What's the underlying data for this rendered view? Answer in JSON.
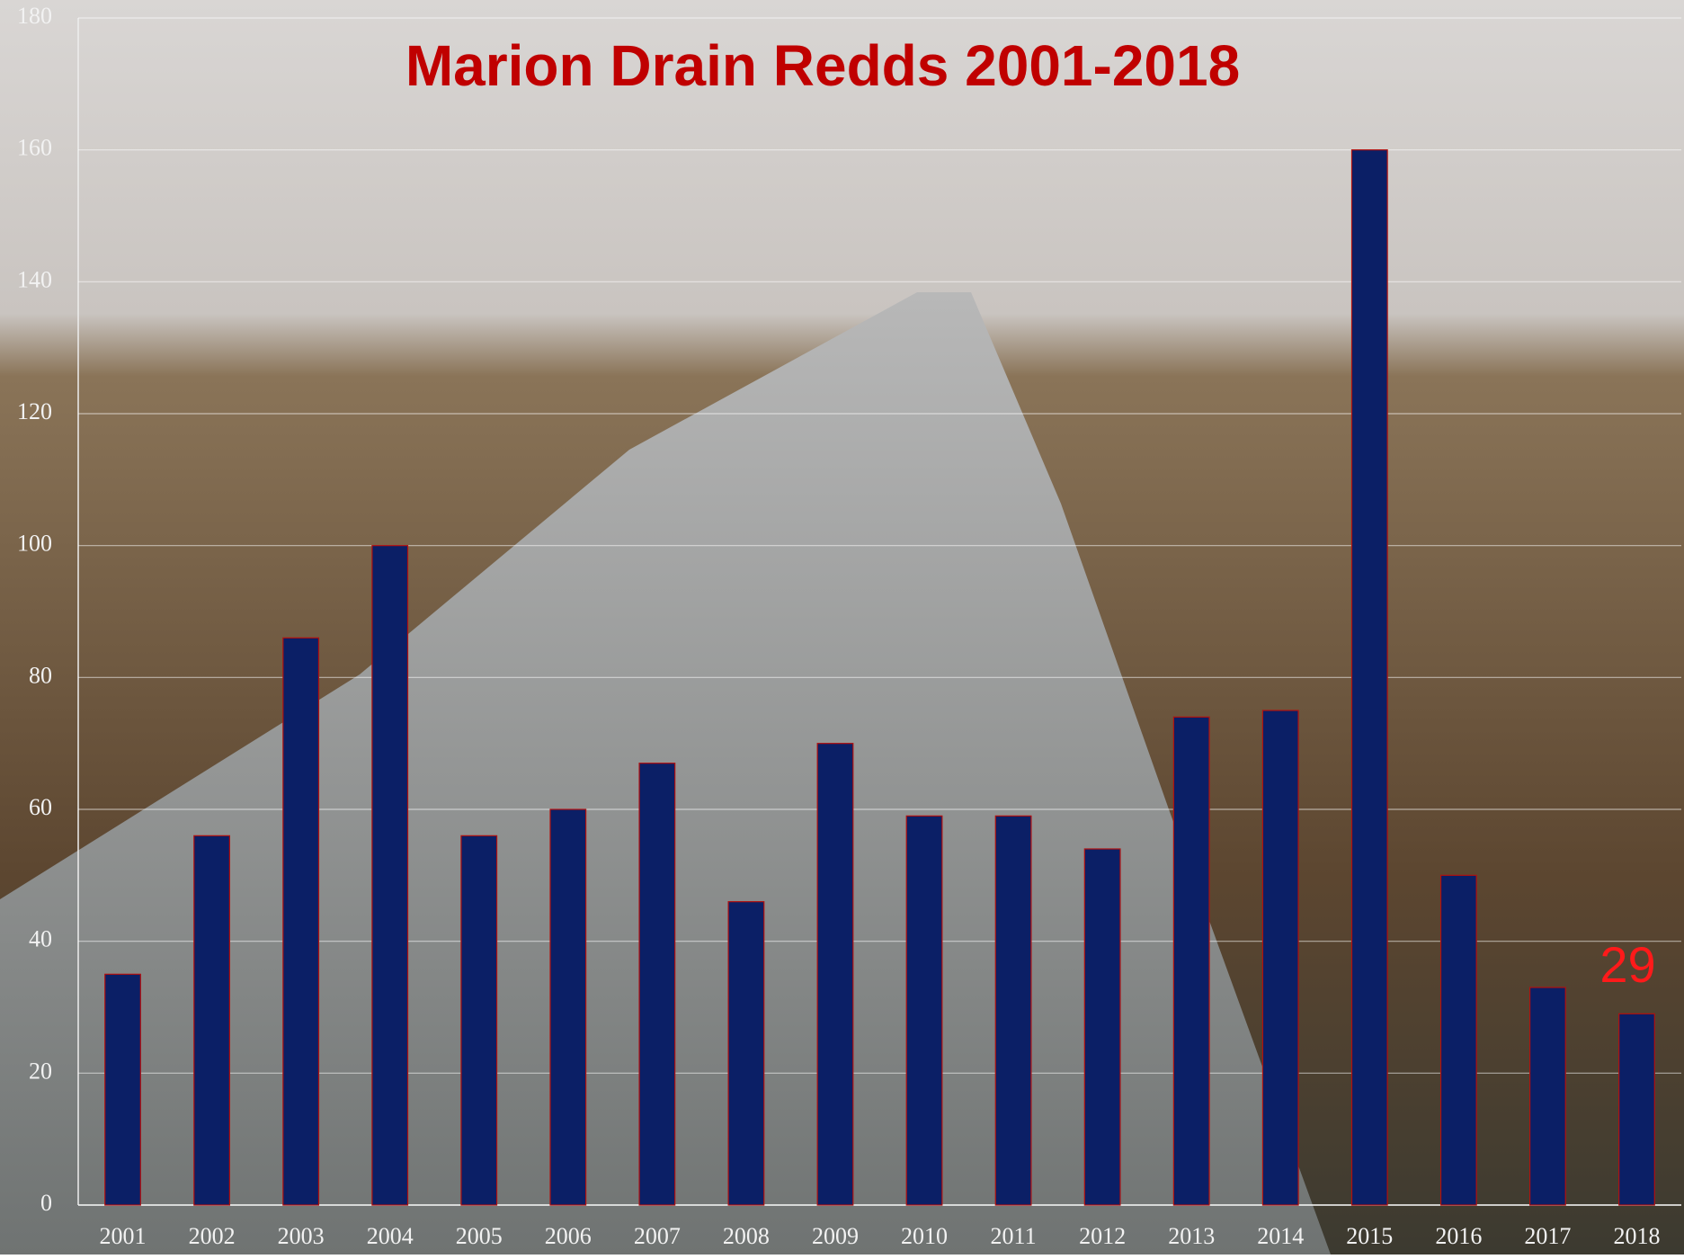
{
  "chart_data": {
    "type": "bar",
    "title": "Marion Drain Redds 2001-2018",
    "categories": [
      "2001",
      "2002",
      "2003",
      "2004",
      "2005",
      "2006",
      "2007",
      "2008",
      "2009",
      "2010",
      "2011",
      "2012",
      "2013",
      "2014",
      "2015",
      "2016",
      "2017",
      "2018"
    ],
    "values": [
      35,
      56,
      86,
      100,
      56,
      60,
      67,
      46,
      70,
      59,
      59,
      54,
      74,
      75,
      160,
      50,
      33,
      29
    ],
    "value_labels": [
      null,
      null,
      null,
      null,
      null,
      null,
      null,
      null,
      null,
      null,
      null,
      null,
      null,
      null,
      null,
      null,
      null,
      "29"
    ],
    "color": "#0b1f66",
    "ylim": [
      0,
      180
    ],
    "yticks": [
      0,
      20,
      40,
      60,
      80,
      100,
      120,
      140,
      160,
      180
    ],
    "grid": true
  }
}
